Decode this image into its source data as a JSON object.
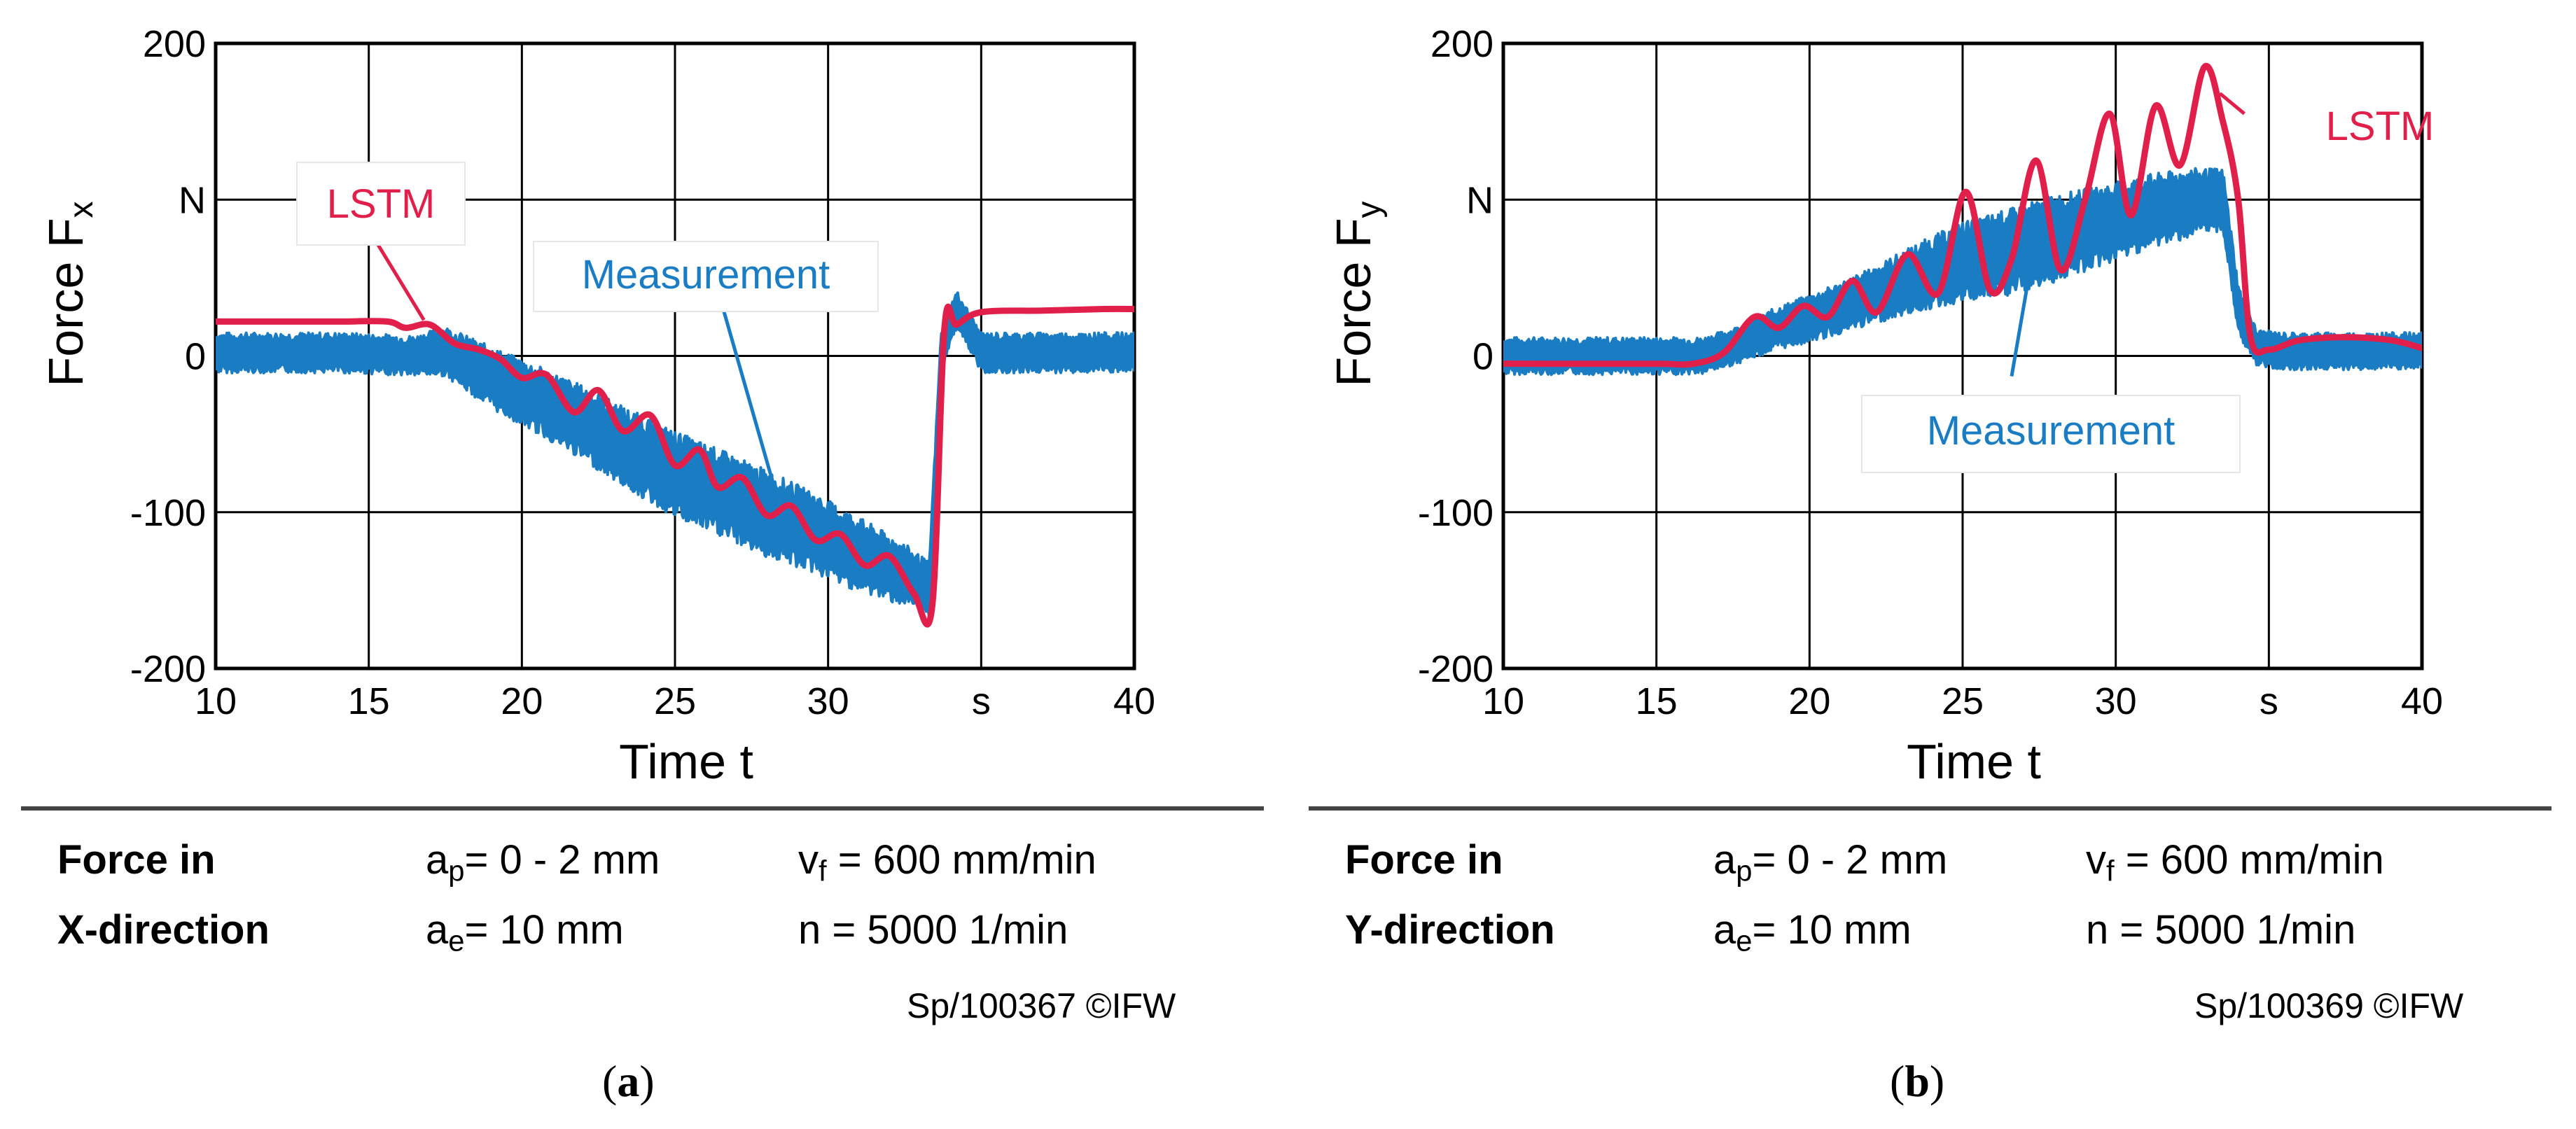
{
  "chart_data": [
    {
      "type": "line",
      "panel_label": "a",
      "xlabel": "Time t",
      "ylabel_main": "Force F",
      "ylabel_sub": "x",
      "x_unit": "s",
      "y_unit": "N",
      "xlim": [
        10,
        40
      ],
      "ylim": [
        -200,
        200
      ],
      "xticks": [
        "10",
        "15",
        "20",
        "25",
        "30",
        "40"
      ],
      "yticks": [
        "200",
        "0",
        "-100",
        "-200"
      ],
      "grid": true,
      "annotations": {
        "lstm": "LSTM",
        "measurement": "Measurement"
      },
      "series": [
        {
          "name": "Measurement",
          "color": "#1a7cc2",
          "x": [
            10,
            12,
            14,
            15.5,
            16.5,
            17.5,
            19,
            20.5,
            22,
            23.5,
            25,
            26.5,
            28,
            29.5,
            31,
            32.5,
            33.3,
            33.7,
            34.2,
            35,
            37,
            39,
            40
          ],
          "y": [
            2,
            2,
            2,
            1,
            0,
            3,
            -14,
            -28,
            -43,
            -60,
            -76,
            -88,
            -101,
            -113,
            -127,
            -140,
            -150,
            5,
            30,
            2,
            2,
            2,
            2
          ],
          "band": [
            13,
            13,
            13,
            13,
            13,
            16,
            20,
            22,
            24,
            26,
            28,
            28,
            28,
            26,
            24,
            20,
            18,
            14,
            12,
            13,
            13,
            13,
            13
          ]
        },
        {
          "name": "LSTM",
          "color": "#e0204a",
          "x": [
            10,
            12,
            14,
            15.6,
            16.2,
            17,
            17.8,
            18.6,
            19.3,
            20,
            20.8,
            21.7,
            22.5,
            23.3,
            24.2,
            25,
            25.8,
            26.4,
            27.2,
            28,
            28.8,
            29.6,
            30.4,
            31.2,
            32,
            32.8,
            33.4,
            33.8,
            34.2,
            35,
            37,
            39,
            40
          ],
          "y": [
            22,
            22,
            22,
            22,
            18,
            20,
            8,
            4,
            -2,
            -14,
            -12,
            -36,
            -22,
            -48,
            -38,
            -70,
            -60,
            -84,
            -78,
            -102,
            -96,
            -118,
            -114,
            -134,
            -128,
            -152,
            -160,
            18,
            20,
            28,
            29,
            30,
            30
          ]
        }
      ],
      "info": {
        "line1_bold": "Force in",
        "line2_bold": "X-direction",
        "ap_sym": "a",
        "ap_sub": "p",
        "ap_val": "= 0 - 2 mm",
        "ae_sym": "a",
        "ae_sub": "e",
        "ae_val": "= 10 mm",
        "vf_sym": "v",
        "vf_sub": "f",
        "vf_val": " = 600 mm/min",
        "n_text": "n  = 5000 1/min",
        "credit": "Sp/100367 ©IFW"
      }
    },
    {
      "type": "line",
      "panel_label": "b",
      "xlabel": "Time t",
      "ylabel_main": "Force F",
      "ylabel_sub": "y",
      "x_unit": "s",
      "y_unit": "N",
      "xlim": [
        10,
        40
      ],
      "ylim": [
        -200,
        200
      ],
      "xticks": [
        "10",
        "15",
        "20",
        "25",
        "30",
        "40"
      ],
      "yticks": [
        "200",
        "0",
        "-100",
        "-200"
      ],
      "grid": true,
      "annotations": {
        "lstm": "LSTM",
        "measurement": "Measurement"
      },
      "series": [
        {
          "name": "Measurement",
          "color": "#1a7cc2",
          "x": [
            10,
            12,
            14,
            15.5,
            16.5,
            17.5,
            19,
            20.5,
            22,
            23.5,
            25,
            26.5,
            28,
            29.5,
            31,
            32.5,
            33.5,
            34,
            34.6,
            35.5,
            37,
            39,
            40
          ],
          "y": [
            0,
            0,
            0,
            0,
            0,
            6,
            18,
            27,
            38,
            50,
            60,
            66,
            75,
            83,
            92,
            98,
            100,
            30,
            5,
            3,
            3,
            3,
            3
          ],
          "band": [
            12,
            12,
            12,
            12,
            12,
            12,
            14,
            16,
            18,
            22,
            26,
            28,
            28,
            26,
            24,
            22,
            20,
            16,
            12,
            12,
            12,
            12,
            12
          ]
        },
        {
          "name": "LSTM",
          "color": "#e0204a",
          "x": [
            10,
            12,
            14,
            15.2,
            16.2,
            17.2,
            18.2,
            19,
            19.8,
            20.6,
            21.4,
            22.2,
            23.2,
            24.2,
            25.1,
            25.9,
            26.6,
            27.4,
            28.2,
            29,
            29.8,
            30.5,
            31.3,
            32.1,
            32.9,
            33.5,
            34,
            34.4,
            35,
            36,
            37.5,
            39,
            40
          ],
          "y": [
            -5,
            -5,
            -5,
            -5,
            -5,
            2,
            25,
            18,
            32,
            25,
            48,
            28,
            65,
            40,
            105,
            42,
            62,
            125,
            55,
            100,
            155,
            90,
            160,
            122,
            185,
            150,
            100,
            12,
            4,
            10,
            12,
            10,
            5
          ]
        }
      ],
      "info": {
        "line1_bold": "Force in",
        "line2_bold": "Y-direction",
        "ap_sym": "a",
        "ap_sub": "p",
        "ap_val": "= 0 - 2 mm",
        "ae_sym": "a",
        "ae_sub": "e",
        "ae_val": "= 10 mm",
        "vf_sym": "v",
        "vf_sub": "f",
        "vf_val": " = 600 mm/min",
        "n_text": "n  = 5000 1/min",
        "credit": "Sp/100369 ©IFW"
      }
    }
  ]
}
